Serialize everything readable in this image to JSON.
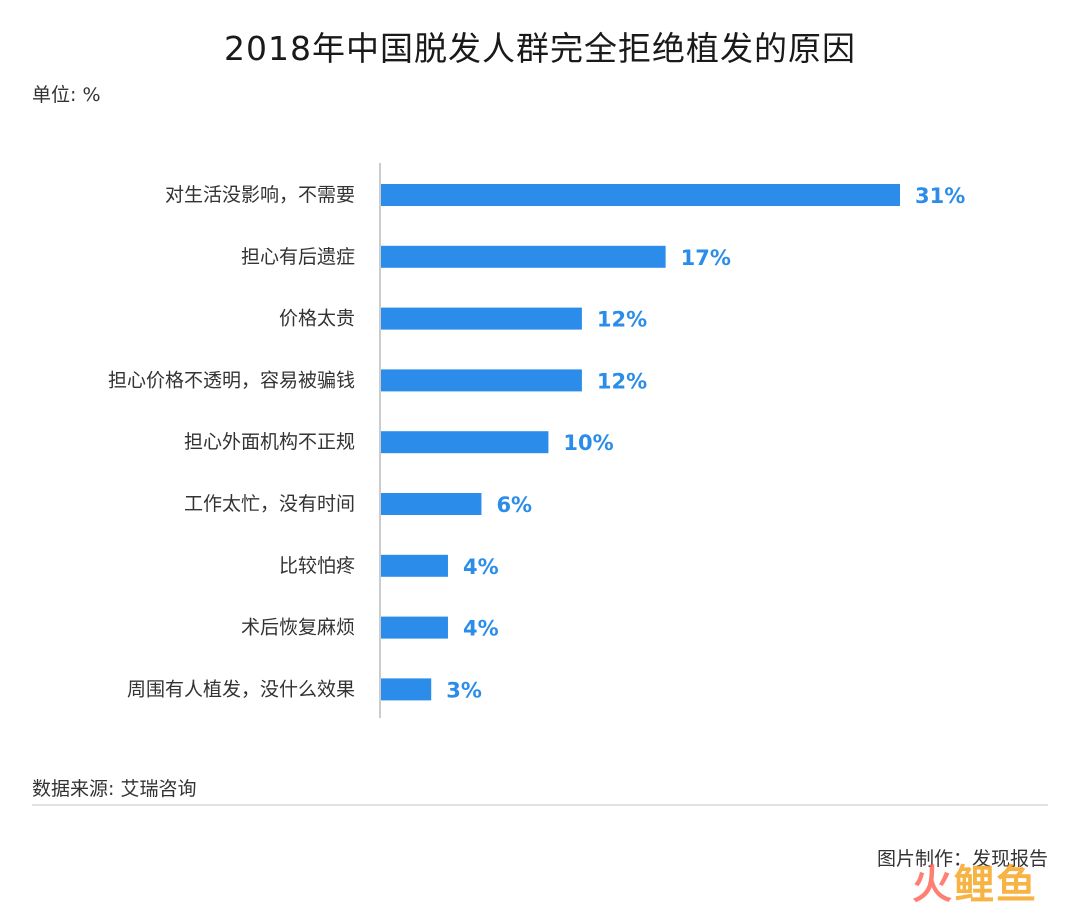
{
  "title": "2018年中国脱发人群完全拒绝植发的原因",
  "unit_label": "单位: %",
  "source": "数据来源: 艾瑞咨询",
  "credit": "图片制作：发现报告",
  "watermark": {
    "part1": "火",
    "part2": "鲤鱼"
  },
  "colors": {
    "bar": "#2b8de9",
    "value_label": "#2b8de9",
    "axis": "#bbbbbb",
    "text": "#333333"
  },
  "chart_data": {
    "type": "bar",
    "orientation": "horizontal",
    "title": "2018年中国脱发人群完全拒绝植发的原因",
    "ylabel": "单位: %",
    "categories": [
      "对生活没影响，不需要",
      "担心有后遗症",
      "价格太贵",
      "担心价格不透明，容易被骗钱",
      "担心外面机构不正规",
      "工作太忙，没有时间",
      "比较怕疼",
      "术后恢复麻烦",
      "周围有人植发，没什么效果"
    ],
    "values": [
      31,
      17,
      12,
      12,
      10,
      6,
      4,
      4,
      3
    ],
    "value_labels": [
      "31%",
      "17%",
      "12%",
      "12%",
      "10%",
      "6%",
      "4%",
      "4%",
      "3%"
    ],
    "xlim": [
      0,
      31
    ],
    "grid": false,
    "legend": "none"
  }
}
